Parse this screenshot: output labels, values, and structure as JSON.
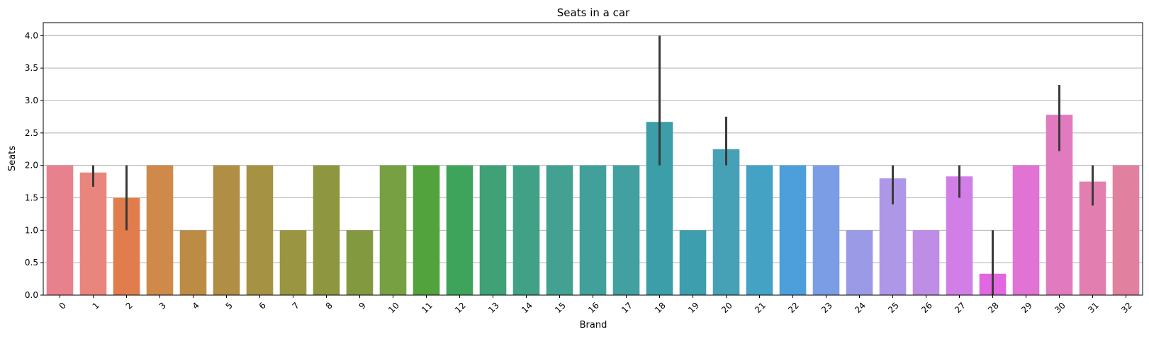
{
  "chart_data": {
    "type": "bar",
    "title": "Seats in a car",
    "xlabel": "Brand",
    "ylabel": "Seats",
    "ylim": [
      0,
      4.2
    ],
    "yticks": [
      0.0,
      0.5,
      1.0,
      1.5,
      2.0,
      2.5,
      3.0,
      3.5,
      4.0
    ],
    "ytick_labels": [
      "0.0",
      "0.5",
      "1.0",
      "1.5",
      "2.0",
      "2.5",
      "3.0",
      "3.5",
      "4.0"
    ],
    "grid": "horizontal",
    "categories": [
      "0",
      "1",
      "2",
      "3",
      "4",
      "5",
      "6",
      "7",
      "8",
      "9",
      "10",
      "11",
      "12",
      "13",
      "14",
      "15",
      "16",
      "17",
      "18",
      "19",
      "20",
      "21",
      "22",
      "23",
      "24",
      "25",
      "26",
      "27",
      "28",
      "29",
      "30",
      "31",
      "32"
    ],
    "values": [
      2.0,
      1.89,
      1.5,
      2.0,
      1.0,
      2.0,
      2.0,
      1.0,
      2.0,
      1.0,
      2.0,
      2.0,
      2.0,
      2.0,
      2.0,
      2.0,
      2.0,
      2.0,
      2.67,
      1.0,
      2.25,
      2.0,
      2.0,
      2.0,
      1.0,
      1.8,
      1.0,
      1.83,
      0.33,
      2.0,
      2.78,
      1.75,
      2.0
    ],
    "error_low": [
      null,
      1.67,
      1.0,
      null,
      null,
      null,
      null,
      null,
      null,
      null,
      null,
      null,
      null,
      null,
      null,
      null,
      null,
      null,
      2.0,
      null,
      2.0,
      null,
      null,
      null,
      null,
      1.4,
      null,
      1.5,
      0.0,
      null,
      2.22,
      1.38,
      null
    ],
    "error_high": [
      null,
      2.0,
      2.0,
      null,
      null,
      null,
      null,
      null,
      null,
      null,
      null,
      null,
      null,
      null,
      null,
      null,
      null,
      null,
      4.0,
      null,
      2.75,
      null,
      null,
      null,
      null,
      2.0,
      null,
      2.0,
      1.0,
      null,
      3.24,
      2.0,
      null
    ],
    "colors": [
      "#e8818e",
      "#e8867e",
      "#e17d4c",
      "#cf8948",
      "#bc8c45",
      "#b08f44",
      "#a59242",
      "#9a9540",
      "#8e973f",
      "#83993f",
      "#76a042",
      "#52a33d",
      "#3ea45c",
      "#3fa175",
      "#41a186",
      "#42a191",
      "#42a09a",
      "#42a0a1",
      "#3b9ea8",
      "#3d9fae",
      "#46a1b6",
      "#44a2c4",
      "#4c9fdb",
      "#7b9de5",
      "#9b9ae6",
      "#ad97e6",
      "#be8ee6",
      "#d17fe7",
      "#e168e0",
      "#e173d4",
      "#e27abf",
      "#e37fb0",
      "#e2809f"
    ]
  }
}
